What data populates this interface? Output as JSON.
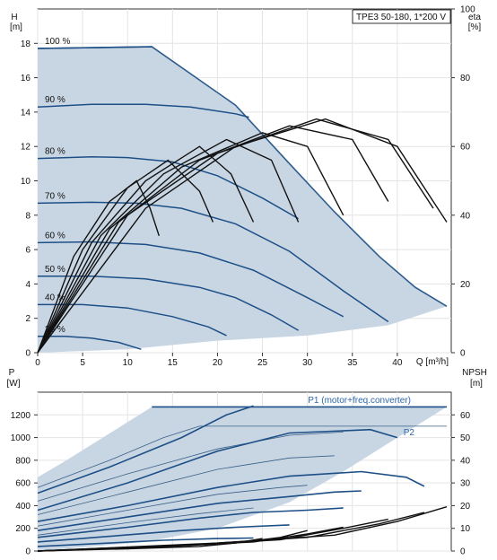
{
  "colors": {
    "envelope_fill": "#c8d6e4",
    "envelope_edge": "#2d5c8c",
    "speed_curve": "#1d4f86",
    "eta_curve": "#111111",
    "grid": "#e4e4e4",
    "axis": "#333333",
    "label_blue": "#2f66a8"
  },
  "chart_data": [
    {
      "type": "line",
      "title": "TPE3 50-180, 1*200 V",
      "x_axis": {
        "label": "Q [m³/h]",
        "unit_short": "Q [m³/h]",
        "range": [
          0,
          46
        ],
        "ticks": [
          0,
          5,
          10,
          15,
          20,
          25,
          30,
          35,
          40
        ]
      },
      "y_left": {
        "label": "H",
        "unit": "[m]",
        "range": [
          0,
          20
        ],
        "ticks": [
          0,
          2,
          4,
          6,
          8,
          10,
          12,
          14,
          16,
          18
        ]
      },
      "y_right": {
        "label": "eta",
        "unit": "[%]",
        "range": [
          0,
          100
        ],
        "ticks": [
          0,
          20,
          40,
          60,
          80,
          100
        ]
      },
      "grid": true,
      "envelope": {
        "upper": [
          [
            0,
            17.7
          ],
          [
            12.7,
            17.8
          ],
          [
            22,
            14.4
          ],
          [
            28,
            11
          ],
          [
            33,
            8.2
          ],
          [
            38,
            5.6
          ],
          [
            42,
            3.8
          ],
          [
            45.5,
            2.7
          ]
        ],
        "lower": [
          [
            45.5,
            2.7
          ],
          [
            39,
            1.6
          ],
          [
            30,
            1
          ],
          [
            20,
            0.7
          ],
          [
            10,
            0.2
          ],
          [
            0,
            0
          ]
        ]
      },
      "speed_curves": [
        {
          "label": "100 %",
          "points": [
            [
              0,
              17.7
            ],
            [
              12.7,
              17.8
            ]
          ]
        },
        {
          "label": "90 %",
          "points": [
            [
              0,
              14.3
            ],
            [
              6,
              14.45
            ],
            [
              12,
              14.45
            ],
            [
              17,
              14.3
            ],
            [
              22,
              13.9
            ],
            [
              23.5,
              13.7
            ]
          ]
        },
        {
          "label": "80 %",
          "points": [
            [
              0,
              11.3
            ],
            [
              6,
              11.4
            ],
            [
              10,
              11.35
            ],
            [
              15,
              11.1
            ],
            [
              20,
              10.3
            ],
            [
              25,
              9
            ],
            [
              29,
              7.8
            ]
          ]
        },
        {
          "label": "70 %",
          "points": [
            [
              0,
              8.7
            ],
            [
              6,
              8.75
            ],
            [
              11,
              8.7
            ],
            [
              16,
              8.4
            ],
            [
              22,
              7.5
            ],
            [
              28,
              5.9
            ],
            [
              34,
              3.6
            ],
            [
              39,
              1.8
            ]
          ]
        },
        {
          "label": "60 %",
          "points": [
            [
              0,
              6.4
            ],
            [
              6,
              6.45
            ],
            [
              12,
              6.3
            ],
            [
              18,
              5.8
            ],
            [
              24,
              4.8
            ],
            [
              30,
              3.2
            ],
            [
              34,
              2.1
            ]
          ]
        },
        {
          "label": "50 %",
          "points": [
            [
              0,
              4.45
            ],
            [
              6,
              4.45
            ],
            [
              12,
              4.3
            ],
            [
              18,
              3.8
            ],
            [
              22,
              3.2
            ],
            [
              26,
              2.2
            ],
            [
              29,
              1.3
            ]
          ]
        },
        {
          "label": "40 %",
          "points": [
            [
              0,
              2.8
            ],
            [
              5,
              2.8
            ],
            [
              10,
              2.6
            ],
            [
              15,
              2.1
            ],
            [
              19,
              1.5
            ],
            [
              21,
              1
            ]
          ]
        },
        {
          "label": "25 %",
          "points": [
            [
              0,
              0.95
            ],
            [
              3,
              0.95
            ],
            [
              6,
              0.85
            ],
            [
              9,
              0.6
            ],
            [
              11.5,
              0.2
            ]
          ]
        }
      ],
      "eta_curves": [
        {
          "points": [
            [
              0,
              0
            ],
            [
              4,
              28
            ],
            [
              8,
              44
            ],
            [
              11,
              50
            ],
            [
              12.5,
              42
            ],
            [
              13.5,
              34
            ]
          ]
        },
        {
          "points": [
            [
              0,
              0
            ],
            [
              5,
              30
            ],
            [
              10,
              48
            ],
            [
              14.5,
              56
            ],
            [
              18,
              47
            ],
            [
              19.5,
              38
            ]
          ]
        },
        {
          "points": [
            [
              0,
              0
            ],
            [
              6,
              32
            ],
            [
              12,
              50
            ],
            [
              18,
              60
            ],
            [
              21.5,
              52
            ],
            [
              24,
              38
            ]
          ]
        },
        {
          "points": [
            [
              0,
              0
            ],
            [
              7,
              34
            ],
            [
              14,
              52
            ],
            [
              21,
              62
            ],
            [
              26,
              56
            ],
            [
              29,
              38
            ]
          ]
        },
        {
          "points": [
            [
              0,
              0
            ],
            [
              8,
              36
            ],
            [
              16,
              54
            ],
            [
              25,
              64
            ],
            [
              30,
              60
            ],
            [
              34,
              40
            ]
          ]
        },
        {
          "points": [
            [
              0,
              0
            ],
            [
              9,
              38
            ],
            [
              18,
              56
            ],
            [
              28,
              66
            ],
            [
              35,
              62
            ],
            [
              39,
              44
            ]
          ]
        },
        {
          "points": [
            [
              0,
              0
            ],
            [
              10,
              40
            ],
            [
              20,
              58
            ],
            [
              31,
              68
            ],
            [
              39,
              62
            ],
            [
              44,
              42
            ]
          ]
        },
        {
          "points": [
            [
              0,
              0
            ],
            [
              12,
              42
            ],
            [
              22,
              60
            ],
            [
              32,
              68
            ],
            [
              40,
              60
            ],
            [
              45.5,
              38
            ]
          ]
        }
      ]
    },
    {
      "type": "line",
      "x_axis": {
        "range": [
          0,
          46
        ]
      },
      "y_left": {
        "label": "P",
        "unit": "[W]",
        "range": [
          0,
          1400
        ],
        "ticks": [
          0,
          200,
          400,
          600,
          800,
          1000,
          1200
        ]
      },
      "y_right": {
        "label": "NPSH",
        "unit": "[m]",
        "range": [
          0,
          70
        ],
        "ticks": [
          0,
          10,
          20,
          30,
          40,
          50,
          60
        ]
      },
      "grid": true,
      "envelope": {
        "upper": [
          [
            0,
            650
          ],
          [
            3,
            790
          ],
          [
            12.7,
            1270
          ],
          [
            45.5,
            1270
          ]
        ],
        "lower": [
          [
            45.5,
            1270
          ],
          [
            40,
            1000
          ],
          [
            34,
            700
          ],
          [
            28,
            430
          ],
          [
            20,
            200
          ],
          [
            12,
            80
          ],
          [
            0,
            0
          ]
        ]
      },
      "series_labels": {
        "p1": "P1 (motor+freq.converter)",
        "p2": "P2"
      },
      "p1_curves": [
        {
          "points": [
            [
              12.7,
              1270
            ],
            [
              45.5,
              1270
            ]
          ]
        },
        {
          "points": [
            [
              0,
              510
            ],
            [
              8,
              740
            ],
            [
              16,
              1000
            ],
            [
              21,
              1200
            ],
            [
              24,
              1280
            ]
          ]
        },
        {
          "points": [
            [
              0,
              360
            ],
            [
              10,
              600
            ],
            [
              20,
              880
            ],
            [
              28,
              1040
            ],
            [
              37,
              1070
            ],
            [
              40,
              1000
            ]
          ]
        },
        {
          "points": [
            [
              0,
              260
            ],
            [
              10,
              400
            ],
            [
              20,
              560
            ],
            [
              28,
              660
            ],
            [
              36,
              700
            ],
            [
              41,
              650
            ],
            [
              43,
              570
            ]
          ]
        },
        {
          "points": [
            [
              0,
              180
            ],
            [
              10,
              300
            ],
            [
              20,
              420
            ],
            [
              28,
              480
            ],
            [
              33,
              520
            ],
            [
              36,
              530
            ]
          ]
        },
        {
          "points": [
            [
              0,
              120
            ],
            [
              10,
              210
            ],
            [
              18,
              290
            ],
            [
              24,
              340
            ],
            [
              30,
              360
            ],
            [
              34,
              380
            ]
          ]
        },
        {
          "points": [
            [
              0,
              80
            ],
            [
              8,
              130
            ],
            [
              16,
              180
            ],
            [
              22,
              210
            ],
            [
              28,
              230
            ]
          ]
        },
        {
          "points": [
            [
              0,
              40
            ],
            [
              8,
              70
            ],
            [
              14,
              95
            ],
            [
              20,
              110
            ],
            [
              24,
              115
            ]
          ]
        }
      ],
      "p2_curves": [
        {
          "points": [
            [
              0,
              560
            ],
            [
              8,
              800
            ],
            [
              14,
              1000
            ],
            [
              18,
              1100
            ],
            [
              45.5,
              1100
            ]
          ]
        },
        {
          "points": [
            [
              0,
              440
            ],
            [
              10,
              680
            ],
            [
              20,
              900
            ],
            [
              28,
              1020
            ],
            [
              34,
              1050
            ]
          ]
        },
        {
          "points": [
            [
              0,
              320
            ],
            [
              10,
              520
            ],
            [
              20,
              720
            ],
            [
              28,
              820
            ],
            [
              33,
              840
            ]
          ]
        },
        {
          "points": [
            [
              0,
              220
            ],
            [
              10,
              360
            ],
            [
              20,
              500
            ],
            [
              27,
              560
            ],
            [
              30,
              580
            ]
          ]
        },
        {
          "points": [
            [
              0,
              140
            ],
            [
              10,
              250
            ],
            [
              18,
              330
            ],
            [
              24,
              380
            ]
          ]
        }
      ],
      "npsh_curves": [
        {
          "points": [
            [
              0,
              0
            ],
            [
              10,
              1
            ],
            [
              18,
              2
            ],
            [
              22,
              3.5
            ],
            [
              25,
              5.5
            ]
          ]
        },
        {
          "points": [
            [
              0,
              0
            ],
            [
              12,
              1.5
            ],
            [
              22,
              3.5
            ],
            [
              27,
              6
            ],
            [
              30,
              9
            ]
          ]
        },
        {
          "points": [
            [
              0,
              0
            ],
            [
              14,
              2
            ],
            [
              24,
              4
            ],
            [
              30,
              7.5
            ],
            [
              34,
              10.5
            ]
          ]
        },
        {
          "points": [
            [
              0,
              0
            ],
            [
              16,
              2.5
            ],
            [
              27,
              5
            ],
            [
              34,
              10
            ],
            [
              39,
              14
            ]
          ]
        },
        {
          "points": [
            [
              0,
              0
            ],
            [
              18,
              3
            ],
            [
              30,
              6
            ],
            [
              38,
              12
            ],
            [
              43,
              17
            ]
          ]
        },
        {
          "points": [
            [
              0,
              0
            ],
            [
              20,
              3.5
            ],
            [
              33,
              7
            ],
            [
              40,
              13
            ],
            [
              45.5,
              19.5
            ]
          ]
        }
      ]
    }
  ]
}
